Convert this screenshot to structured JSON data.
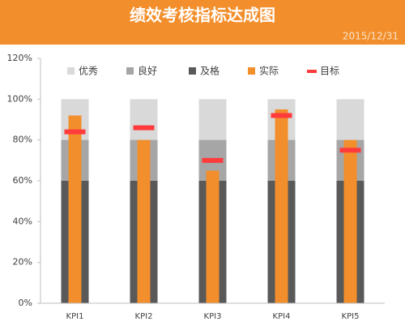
{
  "chart_data": {
    "type": "bar",
    "title": "绩效考核指标达成图",
    "subtitle": "2015/12/31",
    "categories": [
      "KPI1",
      "KPI2",
      "KPI3",
      "KPI4",
      "KPI5"
    ],
    "series": [
      {
        "name": "优秀",
        "color": "#d9d9d9",
        "style": "band",
        "values": [
          100,
          100,
          100,
          100,
          100
        ]
      },
      {
        "name": "良好",
        "color": "#a6a6a6",
        "style": "band",
        "values": [
          80,
          80,
          80,
          80,
          80
        ]
      },
      {
        "name": "及格",
        "color": "#595959",
        "style": "band",
        "values": [
          60,
          60,
          60,
          60,
          60
        ]
      },
      {
        "name": "实际",
        "color": "#f28e2b",
        "style": "bar",
        "values": [
          92,
          80,
          65,
          95,
          80
        ]
      },
      {
        "name": "目标",
        "color": "#ff3b3b",
        "style": "marker",
        "values": [
          84,
          86,
          70,
          92,
          75
        ]
      }
    ],
    "ylim": [
      0,
      120
    ],
    "yticks": [
      {
        "value": 0,
        "label": "0%"
      },
      {
        "value": 20,
        "label": "20%"
      },
      {
        "value": 40,
        "label": "40%"
      },
      {
        "value": 60,
        "label": "60%"
      },
      {
        "value": 80,
        "label": "80%"
      },
      {
        "value": 100,
        "label": "100%"
      },
      {
        "value": 120,
        "label": "120%"
      }
    ],
    "header_color": "#f28e2b",
    "legend": "top",
    "grid": false
  }
}
